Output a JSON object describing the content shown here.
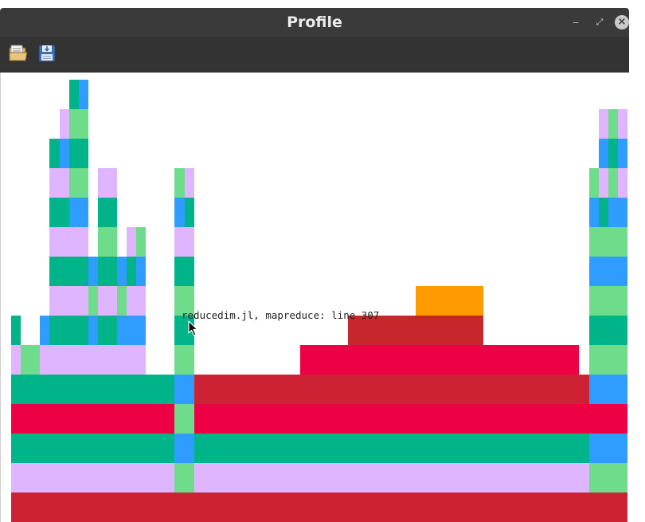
{
  "window": {
    "title": "Profile",
    "minimize_glyph": "‒",
    "maximize_glyph": "⤢",
    "close_glyph": "×"
  },
  "toolbar": {
    "items": [
      {
        "name": "open-button",
        "icon": "folder-open-icon"
      },
      {
        "name": "save-button",
        "icon": "save-icon"
      }
    ]
  },
  "flamegraph": {
    "tooltip": "reducedim.jl, mapreduce: line 307",
    "colors": {
      "teal": "#00b388",
      "lavender": "#e0b5ff",
      "green": "#6fdc8c",
      "blue": "#2f9cff",
      "crimson": "#cc2233",
      "redpink": "#ee0044",
      "orange": "#ff9b00",
      "darkred": "#c8262d"
    },
    "rows": [
      [
        [
          13,
          787,
          "crimson"
        ]
      ],
      [
        [
          13,
          218,
          "lavender"
        ],
        [
          218,
          243,
          "green"
        ],
        [
          243,
          739,
          "lavender"
        ],
        [
          739,
          787,
          "green"
        ]
      ],
      [
        [
          13,
          218,
          "teal"
        ],
        [
          218,
          243,
          "blue"
        ],
        [
          243,
          739,
          "teal"
        ],
        [
          739,
          787,
          "blue"
        ]
      ],
      [
        [
          13,
          218,
          "redpink"
        ],
        [
          218,
          243,
          "green"
        ],
        [
          243,
          739,
          "redpink"
        ],
        [
          739,
          787,
          "redpink"
        ]
      ],
      [
        [
          13,
          218,
          "teal"
        ],
        [
          218,
          243,
          "blue"
        ],
        [
          243,
          739,
          "crimson"
        ],
        [
          739,
          787,
          "blue"
        ]
      ],
      [
        [
          13,
          25,
          "lavender"
        ],
        [
          25,
          49,
          "green"
        ],
        [
          49,
          182,
          "lavender"
        ],
        [
          218,
          243,
          "green"
        ],
        [
          376,
          726,
          "redpink"
        ],
        [
          739,
          787,
          "green"
        ]
      ],
      [
        [
          13,
          25,
          "teal"
        ],
        [
          49,
          61,
          "blue"
        ],
        [
          61,
          110,
          "teal"
        ],
        [
          110,
          122,
          "blue"
        ],
        [
          122,
          146,
          "teal"
        ],
        [
          146,
          182,
          "blue"
        ],
        [
          218,
          243,
          "teal"
        ],
        [
          436,
          606,
          "darkred"
        ],
        [
          739,
          787,
          "teal"
        ]
      ],
      [
        [
          61,
          110,
          "lavender"
        ],
        [
          110,
          122,
          "green"
        ],
        [
          122,
          146,
          "lavender"
        ],
        [
          146,
          158,
          "green"
        ],
        [
          158,
          182,
          "lavender"
        ],
        [
          218,
          243,
          "green"
        ],
        [
          521,
          606,
          "orange"
        ],
        [
          739,
          787,
          "green"
        ]
      ],
      [
        [
          61,
          110,
          "teal"
        ],
        [
          110,
          122,
          "blue"
        ],
        [
          122,
          146,
          "teal"
        ],
        [
          146,
          158,
          "blue"
        ],
        [
          158,
          170,
          "teal"
        ],
        [
          170,
          182,
          "blue"
        ],
        [
          218,
          243,
          "teal"
        ],
        [
          739,
          787,
          "blue"
        ]
      ],
      [
        [
          61,
          110,
          "lavender"
        ],
        [
          122,
          146,
          "green"
        ],
        [
          158,
          170,
          "lavender"
        ],
        [
          170,
          182,
          "green"
        ],
        [
          218,
          243,
          "lavender"
        ],
        [
          739,
          787,
          "green"
        ]
      ],
      [
        [
          61,
          86,
          "teal"
        ],
        [
          86,
          110,
          "blue"
        ],
        [
          122,
          146,
          "teal"
        ],
        [
          218,
          231,
          "blue"
        ],
        [
          231,
          243,
          "teal"
        ],
        [
          739,
          751,
          "blue"
        ],
        [
          751,
          763,
          "teal"
        ],
        [
          763,
          787,
          "blue"
        ]
      ],
      [
        [
          61,
          86,
          "lavender"
        ],
        [
          86,
          110,
          "green"
        ],
        [
          122,
          146,
          "lavender"
        ],
        [
          218,
          231,
          "green"
        ],
        [
          231,
          243,
          "lavender"
        ],
        [
          739,
          751,
          "green"
        ],
        [
          751,
          763,
          "lavender"
        ],
        [
          763,
          775,
          "green"
        ],
        [
          775,
          787,
          "lavender"
        ]
      ],
      [
        [
          61,
          74,
          "teal"
        ],
        [
          74,
          86,
          "blue"
        ],
        [
          86,
          110,
          "teal"
        ],
        [
          751,
          763,
          "blue"
        ],
        [
          763,
          775,
          "teal"
        ],
        [
          775,
          787,
          "blue"
        ]
      ],
      [
        [
          74,
          86,
          "lavender"
        ],
        [
          86,
          110,
          "green"
        ],
        [
          751,
          763,
          "lavender"
        ],
        [
          763,
          775,
          "green"
        ],
        [
          775,
          787,
          "lavender"
        ]
      ],
      [
        [
          86,
          98,
          "teal"
        ],
        [
          98,
          110,
          "blue"
        ]
      ]
    ]
  }
}
